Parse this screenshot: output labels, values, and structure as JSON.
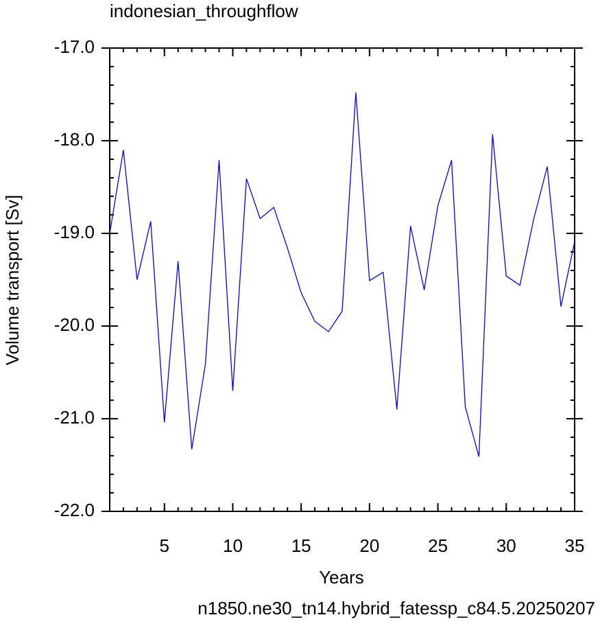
{
  "chart_data": {
    "type": "line",
    "title": "indonesian_throughflow",
    "subtitle": "n1850.ne30_tn14.hybrid_fatessp_c84.5.20250207",
    "subtitle_color": "#0000ff",
    "xlabel": "Years",
    "ylabel": "Volume transport [Sv]",
    "x": [
      1,
      2,
      3,
      4,
      5,
      6,
      7,
      8,
      9,
      10,
      11,
      12,
      13,
      14,
      15,
      16,
      17,
      18,
      19,
      20,
      21,
      22,
      23,
      24,
      25,
      26,
      27,
      28,
      29,
      30,
      31,
      32,
      33,
      34,
      35
    ],
    "series": [
      {
        "color": "#0000ff",
        "values": [
          -19.0,
          -18.1,
          -19.5,
          -18.87,
          -21.04,
          -19.3,
          -21.33,
          -20.41,
          -18.21,
          -20.7,
          -18.41,
          -18.84,
          -18.72,
          -19.16,
          -19.64,
          -19.95,
          -20.06,
          -19.84,
          -17.48,
          -19.51,
          -19.42,
          -20.9,
          -18.92,
          -19.61,
          -18.7,
          -18.21,
          -20.87,
          -21.41,
          -17.93,
          -19.46,
          -19.56,
          -18.85,
          -18.28,
          -19.79,
          -19.09
        ]
      }
    ],
    "xlim": [
      1,
      35
    ],
    "xticks": [
      5,
      10,
      15,
      20,
      25,
      30,
      35
    ],
    "ylim": [
      -22,
      -17
    ],
    "yticks": [
      {
        "value": -22,
        "label": "-22.0"
      },
      {
        "value": -21,
        "label": "-21.0"
      },
      {
        "value": -20,
        "label": "-20.0"
      },
      {
        "value": -19,
        "label": "-19.0"
      },
      {
        "value": -18,
        "label": "-18.0"
      },
      {
        "value": -17,
        "label": "-17.0"
      }
    ],
    "grid": false
  }
}
